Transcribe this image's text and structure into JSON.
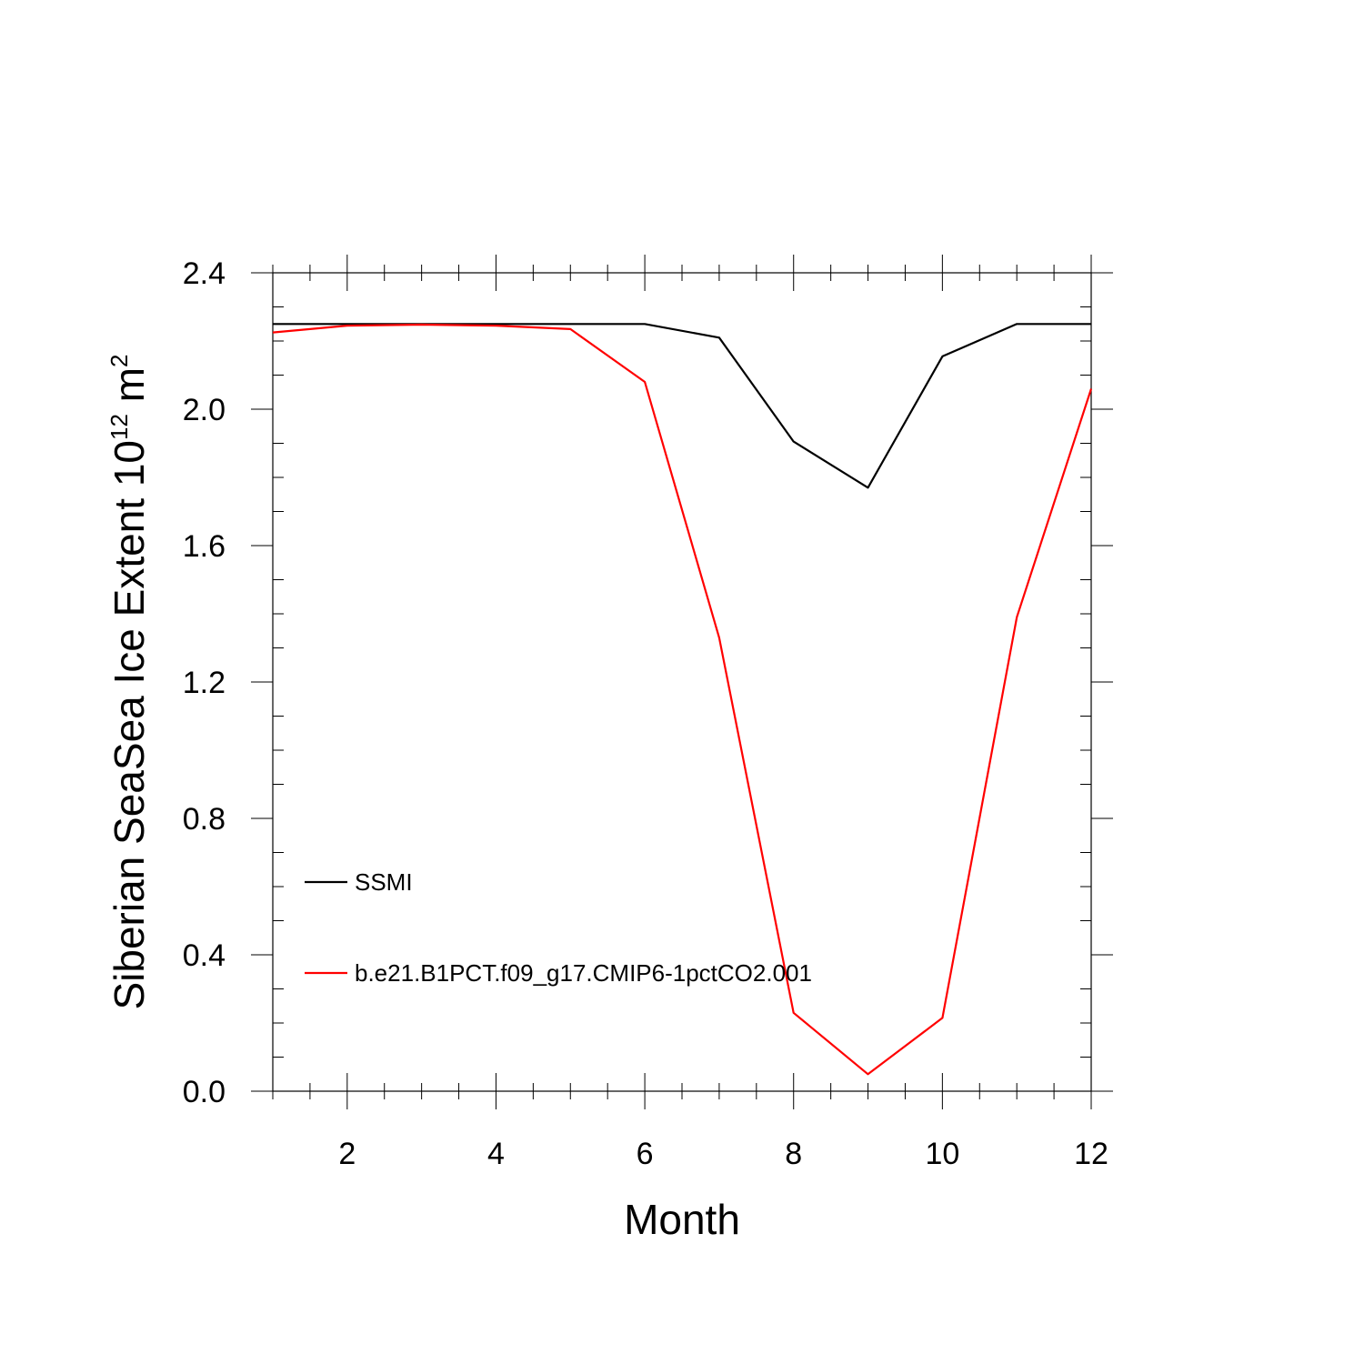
{
  "chart_data": {
    "type": "line",
    "title": "",
    "xlabel": "Month",
    "ylabel": {
      "prefix": "Siberian SeaSea Ice Extent 10",
      "exponent": "12",
      "unit": " m",
      "unit_exponent": "2"
    },
    "xlim": [
      1,
      12
    ],
    "ylim": [
      0,
      2.4
    ],
    "x_ticks": [
      2,
      4,
      6,
      8,
      10,
      12
    ],
    "x_tick_labels": [
      "2",
      "4",
      "6",
      "8",
      "10",
      "12"
    ],
    "y_ticks": [
      0,
      0.4,
      0.8,
      1.2,
      1.6,
      2.0,
      2.4
    ],
    "y_tick_labels": [
      "0.0",
      "0.4",
      "0.8",
      "1.2",
      "1.6",
      "2.0",
      "2.4"
    ],
    "grid": false,
    "legend_position": "bottom-left",
    "x": [
      1,
      2,
      3,
      4,
      5,
      6,
      7,
      8,
      9,
      10,
      11,
      12
    ],
    "series": [
      {
        "name": "SSMI",
        "color": "#000000",
        "values": [
          2.25,
          2.25,
          2.25,
          2.25,
          2.25,
          2.25,
          2.21,
          1.905,
          1.77,
          2.155,
          2.25,
          2.25
        ]
      },
      {
        "name": "b.e21.B1PCT.f09_g17.CMIP6-1pctCO2.001",
        "color": "#ff0000",
        "values": [
          2.225,
          2.245,
          2.248,
          2.245,
          2.235,
          2.08,
          1.33,
          0.23,
          0.05,
          0.215,
          1.39,
          2.06
        ]
      }
    ]
  }
}
